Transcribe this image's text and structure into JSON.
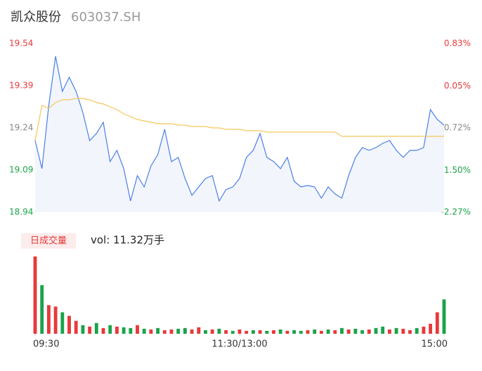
{
  "header": {
    "name": "凯众股份",
    "code": "603037.SH"
  },
  "chart_data": {
    "type": "line",
    "x": [
      0,
      4,
      8,
      12,
      16,
      20,
      24,
      28,
      32,
      36,
      40,
      44,
      48,
      52,
      56,
      60,
      64,
      68,
      72,
      76,
      80,
      84,
      88,
      92,
      96,
      100,
      104,
      108,
      112,
      116,
      120,
      124,
      128,
      132,
      136,
      140,
      144,
      148,
      152,
      156,
      160,
      164,
      168,
      172,
      176,
      180,
      184,
      188,
      192,
      196,
      200,
      204,
      208,
      212,
      216,
      220,
      224,
      228,
      232,
      236,
      240
    ],
    "xlim": [
      0,
      240
    ],
    "xticks": [
      {
        "value": 0,
        "label": "09:30"
      },
      {
        "value": 120,
        "label": "11:30/13:00"
      },
      {
        "value": 240,
        "label": "15:00"
      }
    ],
    "ylim": [
      18.94,
      19.54
    ],
    "yticks": [
      19.54,
      19.39,
      19.24,
      19.09,
      18.94
    ],
    "ytick_colors": [
      "#e8393a",
      "#e8393a",
      "#888888",
      "#1aa34a",
      "#1aa34a"
    ],
    "y2lim": [
      -2.27,
      0.83
    ],
    "y2ticks": [
      {
        "value": 0.83,
        "label": "0.83%"
      },
      {
        "value": 0.05,
        "label": "0.05%"
      },
      {
        "value": -0.72,
        "label": "-0.72%"
      },
      {
        "value": -1.5,
        "label": "-1.50%"
      },
      {
        "value": -2.27,
        "label": "-2.27%"
      }
    ],
    "series": [
      {
        "color": "#4a7fe6",
        "area": "#f2f5fc",
        "values": [
          19.195,
          19.095,
          19.32,
          19.495,
          19.37,
          19.42,
          19.37,
          19.295,
          19.195,
          19.22,
          19.26,
          19.12,
          19.16,
          19.095,
          18.98,
          19.07,
          19.03,
          19.105,
          19.145,
          19.235,
          19.12,
          19.135,
          19.06,
          19.0,
          19.03,
          19.06,
          19.07,
          18.98,
          19.02,
          19.03,
          19.06,
          19.135,
          19.16,
          19.22,
          19.135,
          19.12,
          19.095,
          19.135,
          19.05,
          19.03,
          19.035,
          19.03,
          18.99,
          19.03,
          19.005,
          18.99,
          19.07,
          19.135,
          19.17,
          19.16,
          19.17,
          19.185,
          19.195,
          19.16,
          19.135,
          19.16,
          19.16,
          19.17,
          19.305,
          19.27,
          19.25
        ]
      },
      {
        "color": "#f5c75b",
        "values": [
          19.195,
          19.32,
          19.31,
          19.33,
          19.34,
          19.34,
          19.345,
          19.345,
          19.34,
          19.33,
          19.325,
          19.315,
          19.305,
          19.29,
          19.28,
          19.27,
          19.265,
          19.26,
          19.255,
          19.255,
          19.255,
          19.25,
          19.25,
          19.245,
          19.245,
          19.245,
          19.24,
          19.24,
          19.235,
          19.235,
          19.235,
          19.23,
          19.23,
          19.23,
          19.225,
          19.225,
          19.225,
          19.225,
          19.225,
          19.225,
          19.225,
          19.225,
          19.225,
          19.225,
          19.225,
          19.21,
          19.21,
          19.21,
          19.21,
          19.21,
          19.21,
          19.21,
          19.21,
          19.21,
          19.21,
          19.21,
          19.21,
          19.21,
          19.21,
          19.21,
          19.21
        ]
      }
    ],
    "volume": {
      "label": "日成交量",
      "total": "vol: 11.32万手",
      "values": [
        108,
        68,
        40,
        38,
        30,
        25,
        18,
        12,
        10,
        15,
        8,
        12,
        10,
        9,
        8,
        12,
        7,
        6,
        8,
        5,
        6,
        7,
        8,
        6,
        9,
        5,
        6,
        7,
        5,
        4,
        6,
        4,
        5,
        5,
        4,
        5,
        6,
        4,
        5,
        4,
        5,
        6,
        4,
        6,
        5,
        8,
        6,
        7,
        5,
        6,
        8,
        10,
        6,
        8,
        7,
        5,
        8,
        10,
        14,
        30,
        48
      ],
      "colors": [
        "#e8393a",
        "#1aa34a",
        "#e8393a",
        "#e8393a",
        "#1aa34a",
        "#e8393a",
        "#e8393a",
        "#1aa34a",
        "#e8393a",
        "#1aa34a",
        "#e8393a",
        "#1aa34a",
        "#e8393a",
        "#1aa34a",
        "#1aa34a",
        "#e8393a",
        "#1aa34a",
        "#e8393a",
        "#1aa34a",
        "#e8393a",
        "#e8393a",
        "#1aa34a",
        "#1aa34a",
        "#e8393a",
        "#e8393a",
        "#1aa34a",
        "#e8393a",
        "#1aa34a",
        "#e8393a",
        "#1aa34a",
        "#e8393a",
        "#e8393a",
        "#1aa34a",
        "#e8393a",
        "#1aa34a",
        "#e8393a",
        "#1aa34a",
        "#e8393a",
        "#1aa34a",
        "#1aa34a",
        "#e8393a",
        "#1aa34a",
        "#e8393a",
        "#1aa34a",
        "#e8393a",
        "#1aa34a",
        "#e8393a",
        "#1aa34a",
        "#1aa34a",
        "#e8393a",
        "#1aa34a",
        "#1aa34a",
        "#e8393a",
        "#1aa34a",
        "#e8393a",
        "#e8393a",
        "#1aa34a",
        "#e8393a",
        "#e8393a",
        "#e8393a",
        "#1aa34a"
      ]
    }
  }
}
